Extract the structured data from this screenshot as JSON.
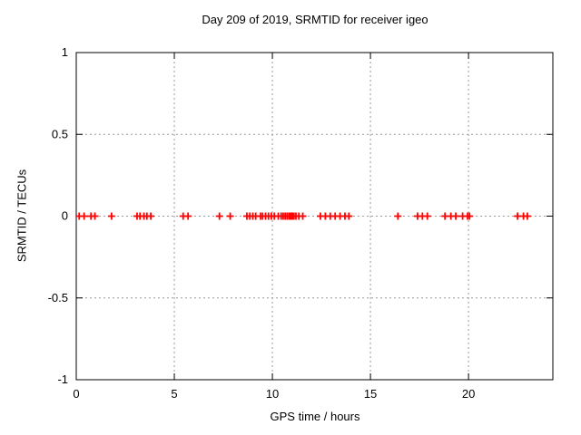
{
  "chart_data": {
    "type": "scatter",
    "title": "Day 209 of 2019, SRMTID for receiver igeo",
    "xlabel": "GPS time / hours",
    "ylabel": "SRMTID / TECUs",
    "xlim": [
      0,
      24.3
    ],
    "ylim": [
      -1,
      1
    ],
    "xticks": [
      0,
      5,
      10,
      15,
      20
    ],
    "xtick_labels": [
      "0",
      "5",
      "10",
      "15",
      "20"
    ],
    "yticks": [
      1,
      0.5,
      0,
      -0.5,
      -1
    ],
    "ytick_labels": [
      "1",
      "0.5",
      "0",
      "-0.5",
      "-1"
    ],
    "grid": "on-dashed",
    "legend": "none",
    "marker": "plus",
    "series": [
      {
        "name": "SRMTID",
        "x": [
          0.15,
          0.4,
          0.75,
          0.95,
          1.8,
          3.1,
          3.25,
          3.45,
          3.6,
          3.8,
          5.45,
          5.7,
          7.3,
          7.85,
          8.7,
          8.85,
          9.0,
          9.15,
          9.4,
          9.5,
          9.65,
          9.8,
          9.95,
          10.1,
          10.3,
          10.45,
          10.55,
          10.65,
          10.75,
          10.85,
          10.9,
          10.95,
          11.0,
          11.05,
          11.1,
          11.2,
          11.35,
          11.55,
          12.45,
          12.7,
          12.95,
          13.2,
          13.45,
          13.7,
          13.9,
          16.4,
          17.4,
          17.65,
          17.9,
          18.8,
          19.1,
          19.35,
          19.7,
          19.95,
          20.05,
          22.5,
          22.8,
          23.0
        ],
        "y": [
          0,
          0,
          0,
          0,
          0,
          0,
          0,
          0,
          0,
          0,
          0,
          0,
          0,
          0,
          0,
          0,
          0,
          0,
          0,
          0,
          0,
          0,
          0,
          0,
          0,
          0,
          0,
          0,
          0,
          0,
          0,
          0,
          0,
          0,
          0,
          0,
          0,
          0,
          0,
          0,
          0,
          0,
          0,
          0,
          0,
          0,
          0,
          0,
          0,
          0,
          0,
          0,
          0,
          0,
          0,
          0,
          0,
          0
        ]
      }
    ]
  },
  "colors": {
    "marker": "#ff0000",
    "axis": "#000000",
    "grid": "#999999",
    "background": "#ffffff",
    "text": "#000000"
  }
}
